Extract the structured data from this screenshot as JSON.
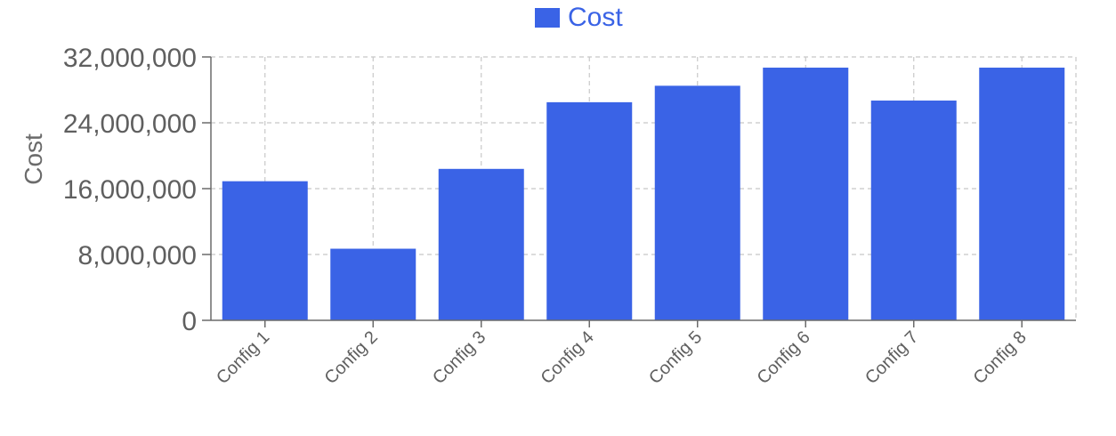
{
  "chart_data": {
    "type": "bar",
    "categories": [
      "Config 1",
      "Config 2",
      "Config 3",
      "Config 4",
      "Config 5",
      "Config 6",
      "Config 7",
      "Config 8"
    ],
    "series": [
      {
        "name": "Cost",
        "color": "#3a63e6",
        "values": [
          16900000,
          8700000,
          18400000,
          26500000,
          28500000,
          30700000,
          26700000,
          30700000
        ]
      }
    ],
    "xlabel": "",
    "ylabel": "Cost",
    "ylim": [
      0,
      32000000
    ],
    "yticks": [
      0,
      8000000,
      16000000,
      24000000,
      32000000
    ],
    "ytick_labels": [
      "0",
      "8,000,000",
      "16,000,000",
      "24,000,000",
      "32,000,000"
    ],
    "grid": true,
    "legend": "top-center"
  }
}
